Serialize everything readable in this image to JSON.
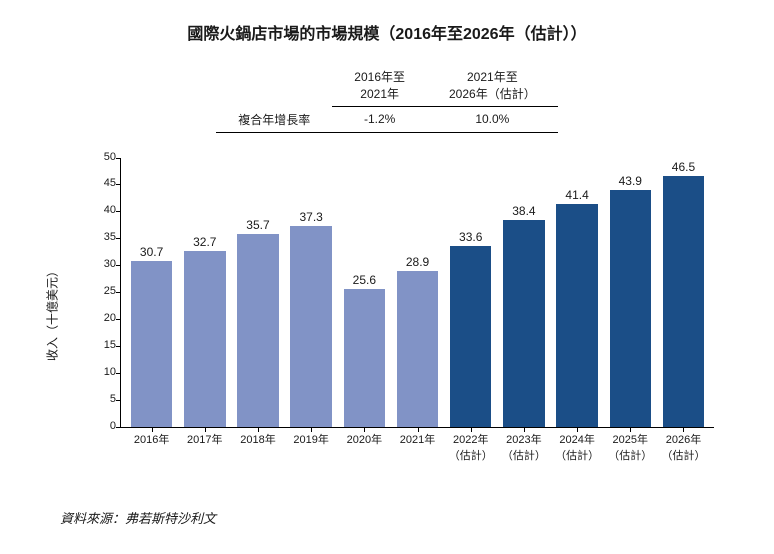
{
  "title": "國際火鍋店市場的市場規模（2016年至2026年（估計））",
  "title_fontsize": 16,
  "cagr": {
    "header_col1": "2016年至\n2021年",
    "header_col2": "2021年至\n2026年（估計）",
    "row_label": "複合年增長率",
    "val1": "-1.2%",
    "val2": "10.0%",
    "fontsize": 12
  },
  "chart": {
    "type": "bar",
    "ylabel": "收入（十億美元）",
    "ylabel_fontsize": 12,
    "ylim_max": 50,
    "ytick_step": 5,
    "ytick_fontsize": 11,
    "xlabel_fontsize": 11,
    "value_fontsize": 12,
    "axis_color": "#000000",
    "background_color": "#ffffff",
    "bars": [
      {
        "label": "2016年",
        "sub": "",
        "value": 30.7,
        "color": "#8193c6"
      },
      {
        "label": "2017年",
        "sub": "",
        "value": 32.7,
        "color": "#8193c6"
      },
      {
        "label": "2018年",
        "sub": "",
        "value": 35.7,
        "color": "#8193c6"
      },
      {
        "label": "2019年",
        "sub": "",
        "value": 37.3,
        "color": "#8193c6"
      },
      {
        "label": "2020年",
        "sub": "",
        "value": 25.6,
        "color": "#8193c6"
      },
      {
        "label": "2021年",
        "sub": "",
        "value": 28.9,
        "color": "#8193c6"
      },
      {
        "label": "2022年",
        "sub": "（估計）",
        "value": 33.6,
        "color": "#1b4e87"
      },
      {
        "label": "2023年",
        "sub": "（估計）",
        "value": 38.4,
        "color": "#1b4e87"
      },
      {
        "label": "2024年",
        "sub": "（估計）",
        "value": 41.4,
        "color": "#1b4e87"
      },
      {
        "label": "2025年",
        "sub": "（估計）",
        "value": 43.9,
        "color": "#1b4e87"
      },
      {
        "label": "2026年",
        "sub": "（估計）",
        "value": 46.5,
        "color": "#1b4e87"
      }
    ]
  },
  "source": "資料來源：弗若斯特沙利文",
  "source_fontsize": 13
}
